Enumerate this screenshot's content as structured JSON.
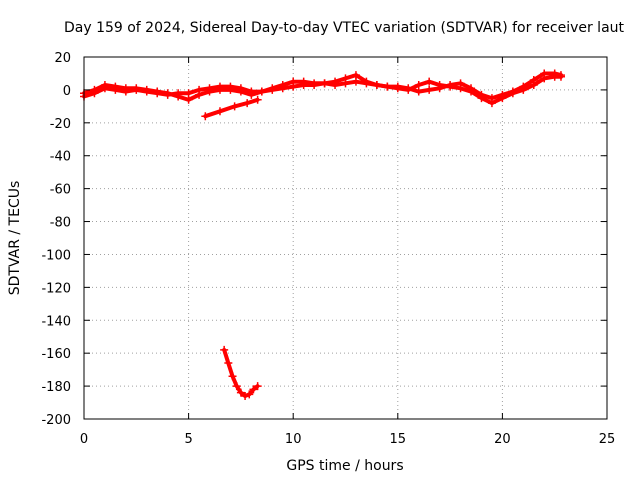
{
  "chart_data": {
    "type": "scatter",
    "title": "Day 159 of 2024, Sidereal Day-to-day VTEC variation (SDTVAR) for receiver laut",
    "xlabel": "GPS time / hours",
    "ylabel": "SDTVAR / TECUs",
    "xlim": [
      0,
      25
    ],
    "ylim": [
      -200,
      20
    ],
    "xticks": [
      0,
      5,
      10,
      15,
      20,
      25
    ],
    "yticks": [
      -200,
      -180,
      -160,
      -140,
      -120,
      -100,
      -80,
      -60,
      -40,
      -20,
      0,
      20
    ],
    "grid": true,
    "marker": "plus",
    "color": "#ff0000",
    "series": [
      {
        "name": "main-trace-a",
        "x": [
          0,
          0.5,
          1,
          1.5,
          2,
          2.5,
          3,
          3.5,
          4,
          4.5,
          5,
          5.5,
          6,
          6.5,
          7,
          7.5,
          8,
          8.5,
          9,
          9.5,
          10,
          10.5,
          11,
          11.5,
          12,
          12.5,
          13,
          13.5,
          14,
          14.5,
          15,
          15.5,
          16,
          16.5,
          17,
          17.5,
          18,
          18.5,
          19,
          19.5,
          20,
          20.5,
          21,
          21.5,
          22,
          22.5,
          22.8
        ],
        "y": [
          -4,
          -2,
          1,
          0,
          -1,
          0,
          -1,
          -2,
          -3,
          -2,
          -2,
          0,
          1,
          2,
          2,
          1,
          -1,
          -1,
          0,
          1,
          2,
          3,
          3,
          4,
          5,
          7,
          9,
          5,
          3,
          2,
          2,
          1,
          -1,
          0,
          1,
          3,
          4,
          1,
          -3,
          -5,
          -3,
          -1,
          2,
          6,
          10,
          10,
          9
        ]
      },
      {
        "name": "main-trace-b",
        "x": [
          0,
          0.5,
          1,
          1.5,
          2,
          2.5,
          3,
          3.5,
          4,
          4.5,
          5,
          5.5,
          6,
          6.5,
          7,
          7.5,
          8,
          8.5,
          9,
          9.5,
          10,
          10.5,
          11,
          11.5,
          12,
          12.5,
          13,
          13.5,
          14,
          14.5,
          15,
          15.5,
          16,
          16.5,
          17,
          17.5,
          18,
          18.5,
          19,
          19.5,
          20,
          20.5,
          21,
          21.5,
          22,
          22.5,
          22.8
        ],
        "y": [
          -2,
          0,
          3,
          2,
          1,
          1,
          0,
          -1,
          -2,
          -4,
          -6,
          -3,
          -1,
          0,
          0,
          -1,
          -3,
          -1,
          1,
          3,
          5,
          5,
          4,
          4,
          3,
          4,
          5,
          4,
          3,
          2,
          1,
          0,
          3,
          5,
          3,
          2,
          1,
          -1,
          -5,
          -8,
          -5,
          -2,
          0,
          3,
          7,
          8,
          8
        ]
      },
      {
        "name": "rising-segment",
        "x": [
          5.8,
          6.5,
          7.2,
          7.8,
          8.3
        ],
        "y": [
          -16,
          -13,
          -10,
          -8,
          -6
        ]
      },
      {
        "name": "dip-segment",
        "x": [
          6.7,
          6.9,
          7.1,
          7.3,
          7.5,
          7.7,
          7.9,
          8.1,
          8.3
        ],
        "y": [
          -158,
          -166,
          -174,
          -180,
          -184,
          -186,
          -185,
          -182,
          -180
        ]
      }
    ]
  }
}
